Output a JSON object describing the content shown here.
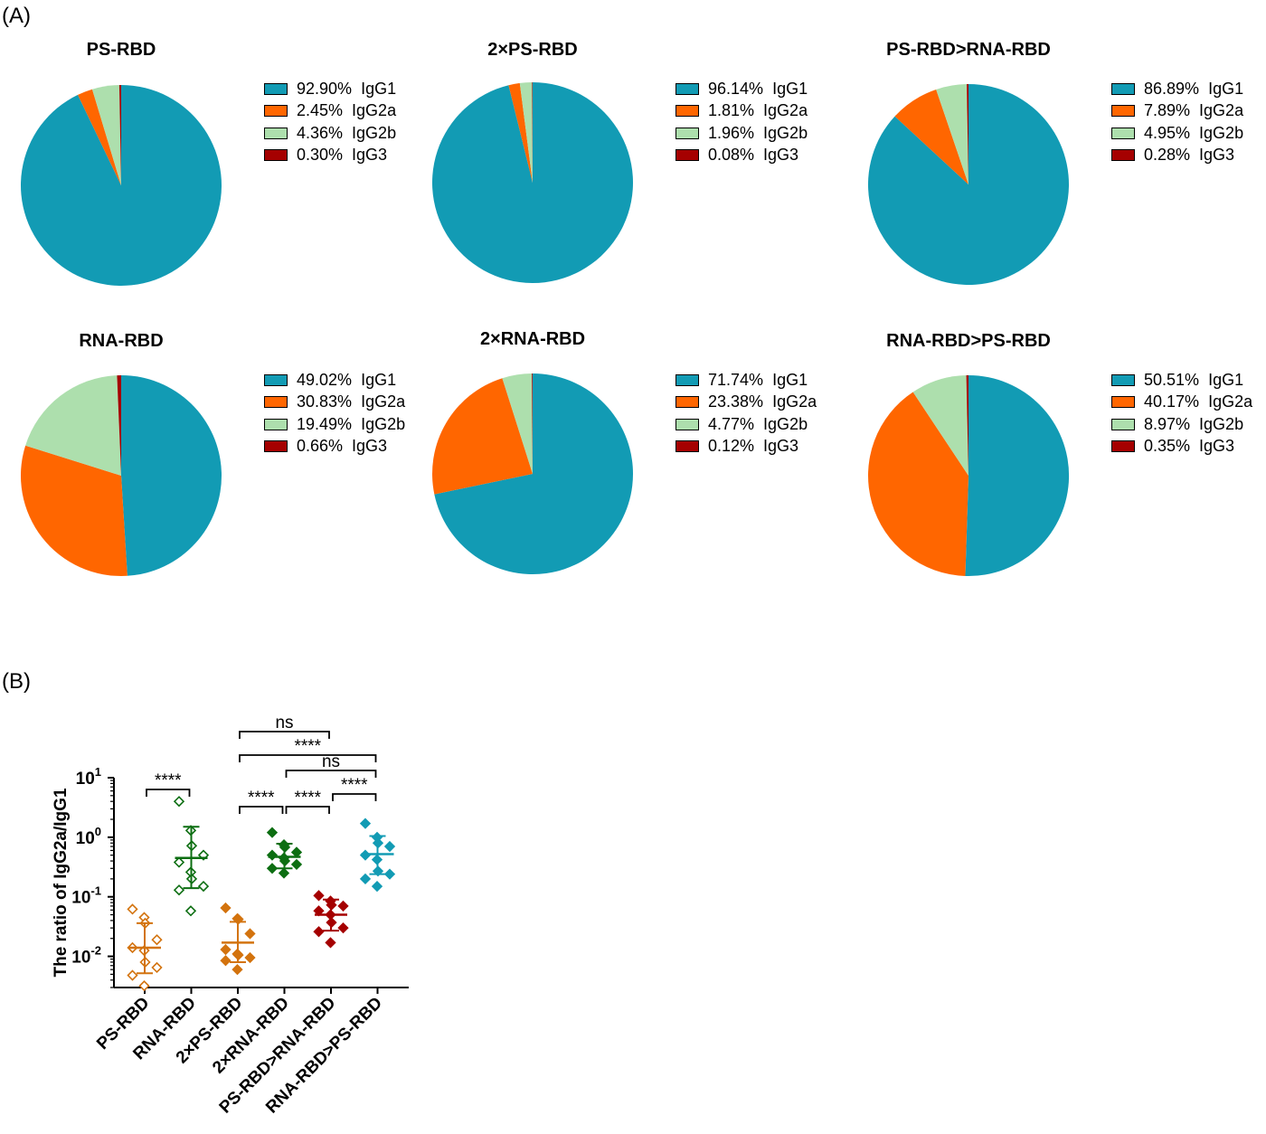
{
  "panel_labels": {
    "a": "(A)",
    "b": "(B)"
  },
  "colors": {
    "IgG1": "#129bb4",
    "IgG2a": "#ff6600",
    "IgG2b": "#addfad",
    "IgG3": "#a50000",
    "ps_rbd": "#d3730e",
    "rna_rbd": "#0d6e12",
    "two_ps_rbd": "#d3730e",
    "two_rna_rbd": "#0d6e12",
    "ps_rna_rbd": "#a50000",
    "rna_ps_rbd": "#129bb4"
  },
  "chart_data": [
    {
      "type": "pie",
      "title": "PS-RBD",
      "slices": [
        {
          "label": "IgG1",
          "pct_text": "92.90%",
          "value": 92.9
        },
        {
          "label": "IgG2a",
          "pct_text": "2.45%",
          "value": 2.45
        },
        {
          "label": "IgG2b",
          "pct_text": "4.36%",
          "value": 4.36
        },
        {
          "label": "IgG3",
          "pct_text": "0.30%",
          "value": 0.3
        }
      ]
    },
    {
      "type": "pie",
      "title": "2×PS-RBD",
      "slices": [
        {
          "label": "IgG1",
          "pct_text": "96.14%",
          "value": 96.14
        },
        {
          "label": "IgG2a",
          "pct_text": "1.81%",
          "value": 1.81
        },
        {
          "label": "IgG2b",
          "pct_text": "1.96%",
          "value": 1.96
        },
        {
          "label": "IgG3",
          "pct_text": "0.08%",
          "value": 0.08
        }
      ]
    },
    {
      "type": "pie",
      "title": "PS-RBD>RNA-RBD",
      "slices": [
        {
          "label": "IgG1",
          "pct_text": "86.89%",
          "value": 86.89
        },
        {
          "label": "IgG2a",
          "pct_text": "7.89%",
          "value": 7.89
        },
        {
          "label": "IgG2b",
          "pct_text": "4.95%",
          "value": 4.95
        },
        {
          "label": "IgG3",
          "pct_text": "0.28%",
          "value": 0.28
        }
      ]
    },
    {
      "type": "pie",
      "title": "RNA-RBD",
      "slices": [
        {
          "label": "IgG1",
          "pct_text": "49.02%",
          "value": 49.02
        },
        {
          "label": "IgG2a",
          "pct_text": "30.83%",
          "value": 30.83
        },
        {
          "label": "IgG2b",
          "pct_text": "19.49%",
          "value": 19.49
        },
        {
          "label": "IgG3",
          "pct_text": "0.66%",
          "value": 0.66
        }
      ]
    },
    {
      "type": "pie",
      "title": "2×RNA-RBD",
      "slices": [
        {
          "label": "IgG1",
          "pct_text": "71.74%",
          "value": 71.74
        },
        {
          "label": "IgG2a",
          "pct_text": "23.38%",
          "value": 23.38
        },
        {
          "label": "IgG2b",
          "pct_text": "4.77%",
          "value": 4.77
        },
        {
          "label": "IgG3",
          "pct_text": "0.12%",
          "value": 0.12
        }
      ]
    },
    {
      "type": "pie",
      "title": "RNA-RBD>PS-RBD",
      "slices": [
        {
          "label": "IgG1",
          "pct_text": "50.51%",
          "value": 50.51
        },
        {
          "label": "IgG2a",
          "pct_text": "40.17%",
          "value": 40.17
        },
        {
          "label": "IgG2b",
          "pct_text": "8.97%",
          "value": 8.97
        },
        {
          "label": "IgG3",
          "pct_text": "0.35%",
          "value": 0.35
        }
      ]
    },
    {
      "type": "scatter",
      "ylabel": "The ratio of IgG2a/IgG1",
      "yscale": "log",
      "ylim": [
        0.003,
        10
      ],
      "yticks": [
        {
          "base": "10",
          "exp": "-2",
          "value": 0.01
        },
        {
          "base": "10",
          "exp": "-1",
          "value": 0.1
        },
        {
          "base": "10",
          "exp": "0",
          "value": 1
        },
        {
          "base": "10",
          "exp": "1",
          "value": 10
        }
      ],
      "groups": [
        {
          "name": "PS-RBD",
          "marker": "open-diamond",
          "color": "#d3730e",
          "mean": 0.014,
          "sd_low": 0.0052,
          "sd_high": 0.036,
          "points": [
            0.062,
            0.045,
            0.036,
            0.019,
            0.014,
            0.0125,
            0.008,
            0.0065,
            0.0048,
            0.0032
          ]
        },
        {
          "name": "RNA-RBD",
          "marker": "open-diamond",
          "color": "#0d6e12",
          "mean": 0.45,
          "sd_low": 0.14,
          "sd_high": 1.5,
          "points": [
            4.0,
            1.3,
            0.72,
            0.5,
            0.38,
            0.26,
            0.2,
            0.15,
            0.13,
            0.058
          ]
        },
        {
          "name": "2×PS-RBD",
          "marker": "filled-diamond",
          "color": "#d3730e",
          "mean": 0.017,
          "sd_low": 0.008,
          "sd_high": 0.038,
          "points": [
            0.065,
            0.043,
            0.042,
            0.024,
            0.013,
            0.011,
            0.0105,
            0.0095,
            0.0085,
            0.006
          ]
        },
        {
          "name": "2×RNA-RBD",
          "marker": "filled-diamond",
          "color": "#0d6e12",
          "mean": 0.47,
          "sd_low": 0.3,
          "sd_high": 0.78,
          "points": [
            1.2,
            0.75,
            0.68,
            0.56,
            0.5,
            0.45,
            0.4,
            0.35,
            0.3,
            0.25
          ]
        },
        {
          "name": "PS-RBD>RNA-RBD",
          "marker": "filled-diamond",
          "color": "#a50000",
          "mean": 0.05,
          "sd_low": 0.027,
          "sd_high": 0.09,
          "points": [
            0.105,
            0.085,
            0.073,
            0.07,
            0.058,
            0.05,
            0.037,
            0.03,
            0.026,
            0.017
          ]
        },
        {
          "name": "RNA-RBD>PS-RBD",
          "marker": "filled-diamond",
          "color": "#129bb4",
          "mean": 0.52,
          "sd_low": 0.24,
          "sd_high": 1.05,
          "points": [
            1.7,
            1.0,
            0.8,
            0.7,
            0.5,
            0.42,
            0.27,
            0.24,
            0.2,
            0.15
          ]
        }
      ],
      "significance": [
        {
          "from": 0,
          "to": 1,
          "text": "****"
        },
        {
          "from": 2,
          "to": 3,
          "text": "****"
        },
        {
          "from": 3,
          "to": 4,
          "text": "****"
        },
        {
          "from": 4,
          "to": 5,
          "text": "****"
        },
        {
          "from": 3,
          "to": 5,
          "text": "ns"
        },
        {
          "from": 2,
          "to": 5,
          "text": "****"
        },
        {
          "from": 2,
          "to": 4,
          "text": "ns"
        }
      ]
    }
  ]
}
